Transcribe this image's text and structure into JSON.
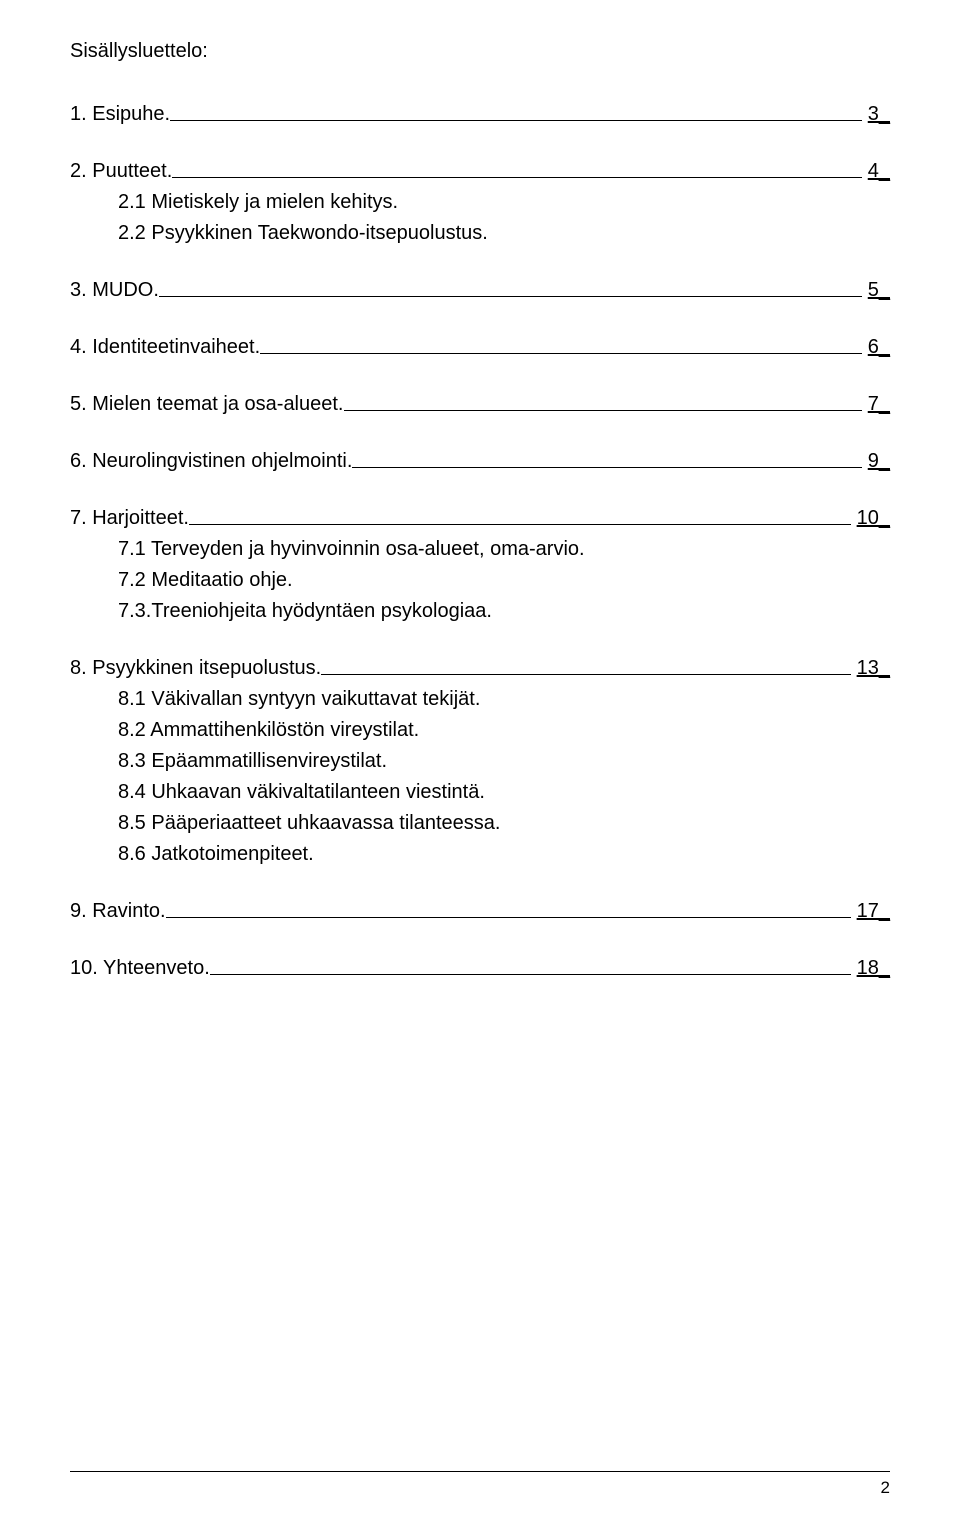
{
  "title": "Sisällysluettelo:",
  "sections": [
    {
      "label": "1. Esipuhe.",
      "page": "3",
      "subs": []
    },
    {
      "label": "2. Puutteet.",
      "page": "4",
      "subs": [
        "2.1 Mietiskely ja mielen kehitys.",
        "2.2 Psyykkinen Taekwondo-itsepuolustus."
      ]
    },
    {
      "label": "3. MUDO.",
      "page": "5",
      "subs": []
    },
    {
      "label": "4. Identiteetinvaiheet.",
      "page": "6",
      "subs": []
    },
    {
      "label": "5. Mielen teemat ja osa-alueet.",
      "page": "7",
      "subs": []
    },
    {
      "label": "6. Neurolingvistinen ohjelmointi.",
      "page": "9",
      "subs": []
    },
    {
      "label": "7. Harjoitteet.",
      "page": "10",
      "subs": [
        "7.1 Terveyden ja hyvinvoinnin osa-alueet, oma-arvio.",
        "7.2 Meditaatio ohje.",
        "7.3.Treeniohjeita hyödyntäen psykologiaa."
      ]
    },
    {
      "label": "8. Psyykkinen itsepuolustus.",
      "page": "13",
      "subs": [
        "8.1 Väkivallan syntyyn vaikuttavat tekijät.",
        "8.2 Ammattihenkilöstön vireystilat.",
        "8.3 Epäammatillisenvireystilat.",
        "8.4 Uhkaavan väkivaltatilanteen viestintä.",
        "8.5 Pääperiaatteet uhkaavassa tilanteessa.",
        "8.6 Jatkotoimenpiteet."
      ]
    },
    {
      "label": "9. Ravinto.",
      "page": "17",
      "subs": []
    },
    {
      "label": "10. Yhteenveto.",
      "page": "18",
      "subs": []
    }
  ],
  "footer_page": "2"
}
